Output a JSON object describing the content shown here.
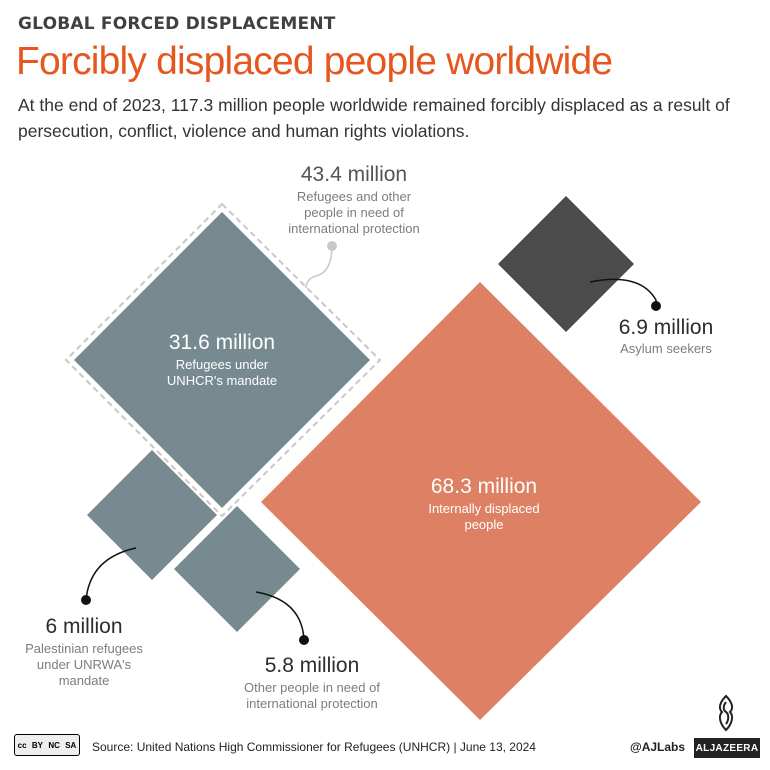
{
  "header": {
    "kicker": "GLOBAL FORCED DISPLACEMENT",
    "title": "Forcibly displaced people worldwide",
    "subtitle": "At the end of 2023, 117.3 million people worldwide remained forcibly displaced as a result of persecution, conflict, violence and human rights violations."
  },
  "chart_data": {
    "type": "diamond-area",
    "unit": "million",
    "total": 117.3,
    "groups": [
      {
        "value_label": "43.4 million",
        "label": "Refugees and other people in need of international protection",
        "value": 43.4,
        "members": [
          "refugees_unhcr",
          "palestinian",
          "other_protection"
        ]
      }
    ],
    "items": [
      {
        "key": "refugees_unhcr",
        "value": 31.6,
        "value_label": "31.6 million",
        "label_lines": [
          "Refugees under",
          "UNHCR's mandate"
        ],
        "color": "#768a90"
      },
      {
        "key": "palestinian",
        "value": 6,
        "value_label": "6 million",
        "label_lines": [
          "Palestinian refugees",
          "under UNRWA's",
          "mandate"
        ],
        "color": "#768a90"
      },
      {
        "key": "other_protection",
        "value": 5.8,
        "value_label": "5.8 million",
        "label_lines": [
          "Other people in need of",
          "international protection"
        ],
        "color": "#768a90"
      },
      {
        "key": "idp",
        "value": 68.3,
        "value_label": "68.3 million",
        "label_lines": [
          "Internally displaced",
          "people"
        ],
        "color": "#de8063"
      },
      {
        "key": "asylum",
        "value": 6.9,
        "value_label": "6.9 million",
        "label_lines": [
          "Asylum seekers"
        ],
        "color": "#4b4b4b"
      }
    ],
    "group_label_lines": [
      "Refugees and other",
      "people in need of",
      "international protection"
    ]
  },
  "footer": {
    "source": "Source: United Nations High Commissioner for Refugees (UNHCR) | June 13, 2024",
    "handle": "@AJLabs",
    "brand": "ALJAZEERA",
    "license": [
      "cc",
      "BY",
      "NC",
      "SA"
    ]
  }
}
